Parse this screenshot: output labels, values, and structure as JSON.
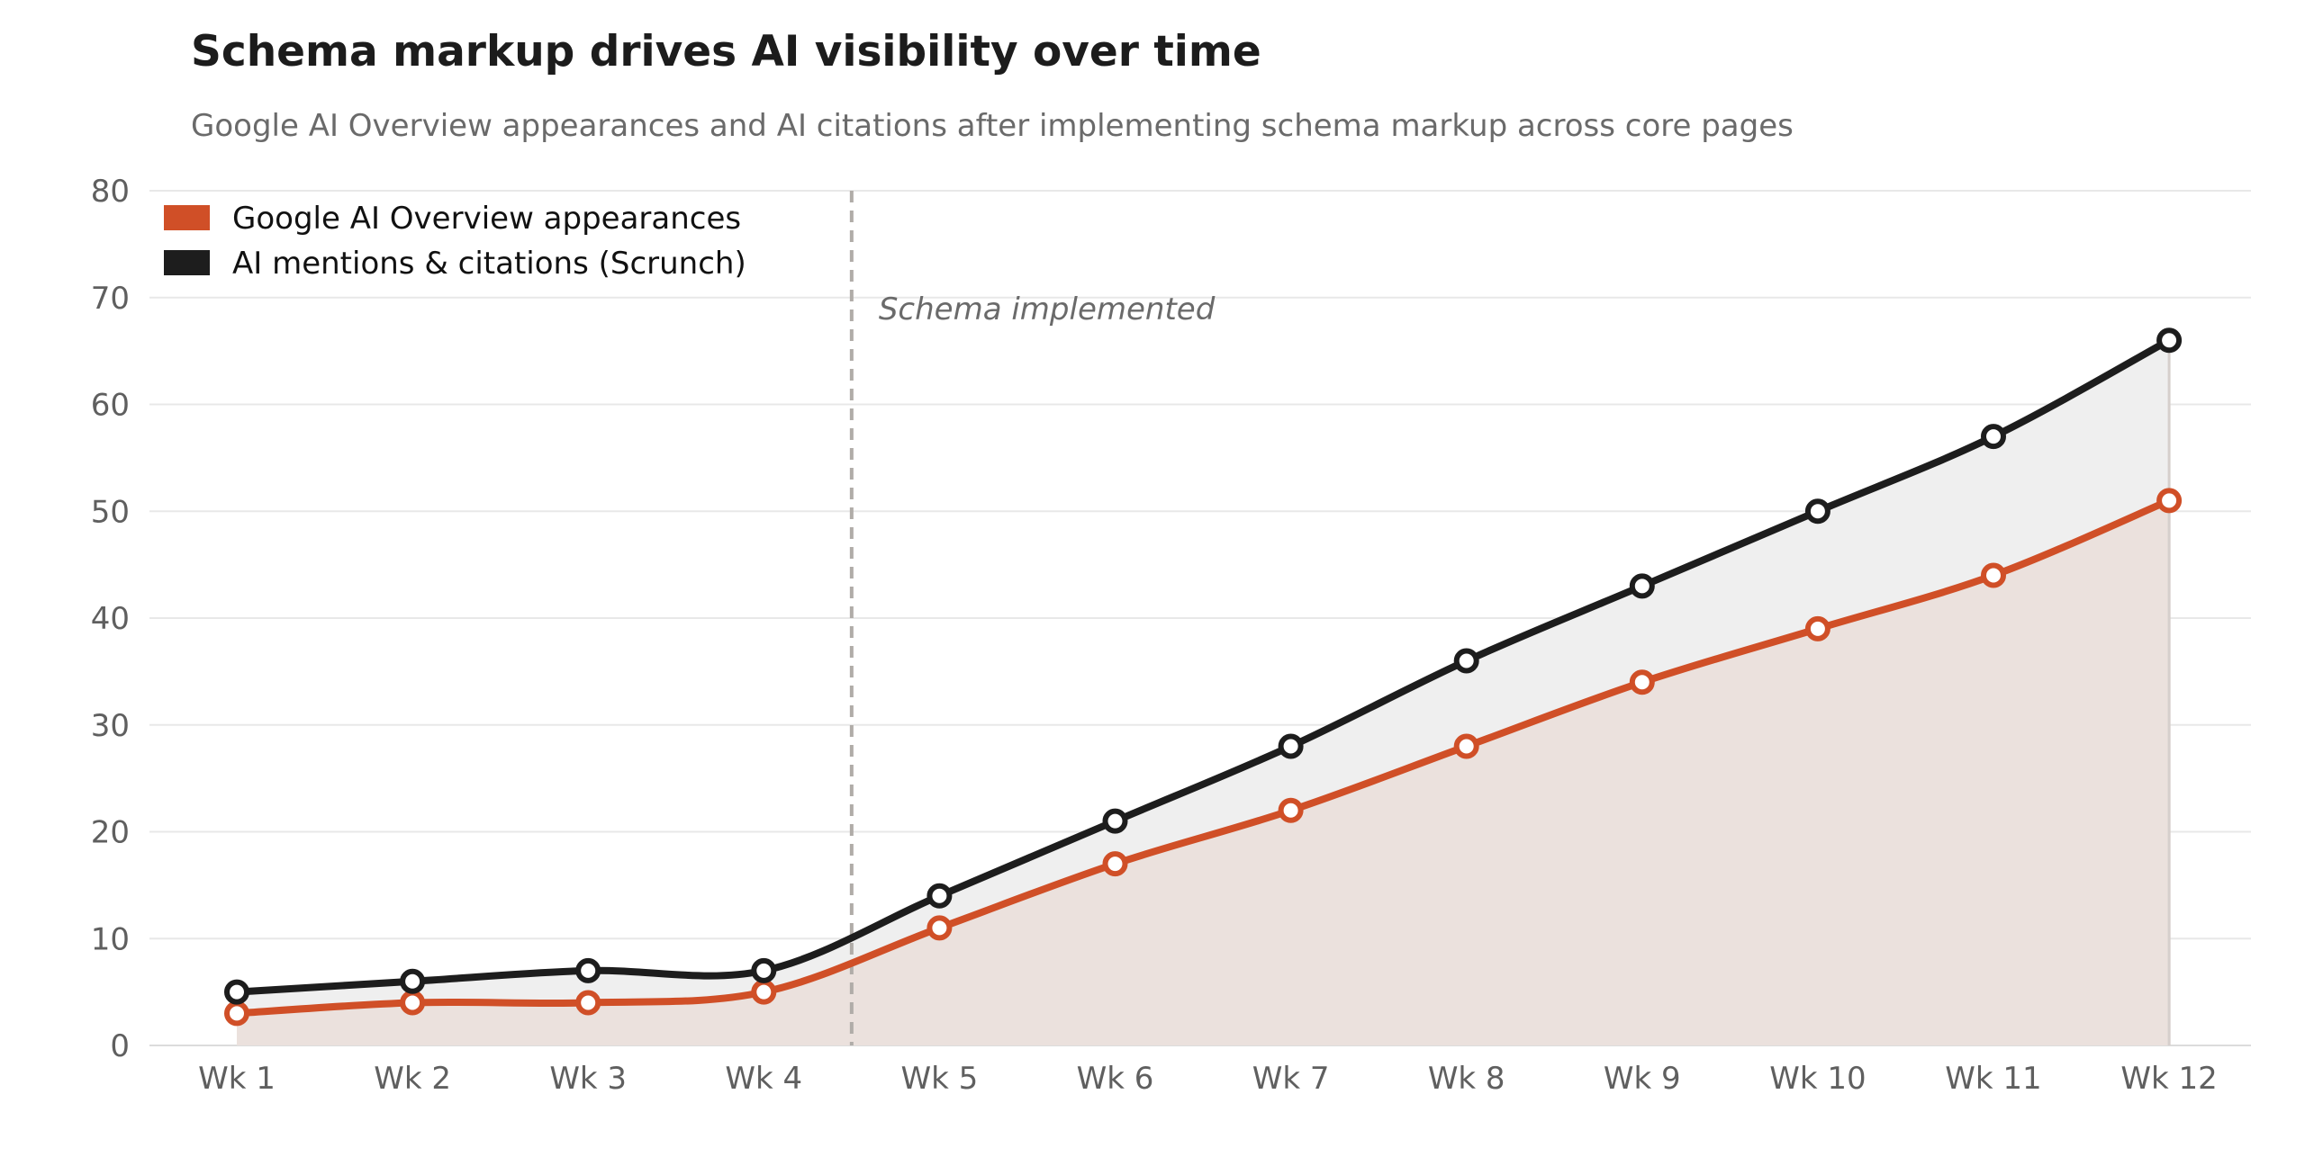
{
  "chart_data": {
    "type": "area",
    "title": "Schema markup drives AI visibility over time",
    "subtitle": "Google AI Overview appearances and AI citations after implementing schema markup across core pages",
    "xlabel": "",
    "ylabel": "",
    "categories": [
      "Wk 1",
      "Wk 2",
      "Wk 3",
      "Wk 4",
      "Wk 5",
      "Wk 6",
      "Wk 7",
      "Wk 8",
      "Wk 9",
      "Wk 10",
      "Wk 11",
      "Wk 12"
    ],
    "ylim": [
      0,
      80
    ],
    "yticks": [
      0,
      10,
      20,
      30,
      40,
      50,
      60,
      70,
      80
    ],
    "grid": "horizontal",
    "legend_position": "top-left",
    "series": [
      {
        "name": "Google AI Overview appearances",
        "color": "#d04f27",
        "fill": "#ebe1dd",
        "values": [
          3,
          4,
          4,
          5,
          11,
          17,
          22,
          28,
          34,
          39,
          44,
          51
        ]
      },
      {
        "name": "AI mentions & citations (Scrunch)",
        "color": "#1d1d1d",
        "fill": "#efefef",
        "values": [
          5,
          6,
          7,
          7,
          14,
          21,
          28,
          36,
          43,
          50,
          57,
          66
        ]
      }
    ],
    "annotations": [
      {
        "text": "Schema implemented",
        "x": 4.5,
        "style": "dashed-vertical-line"
      }
    ]
  }
}
